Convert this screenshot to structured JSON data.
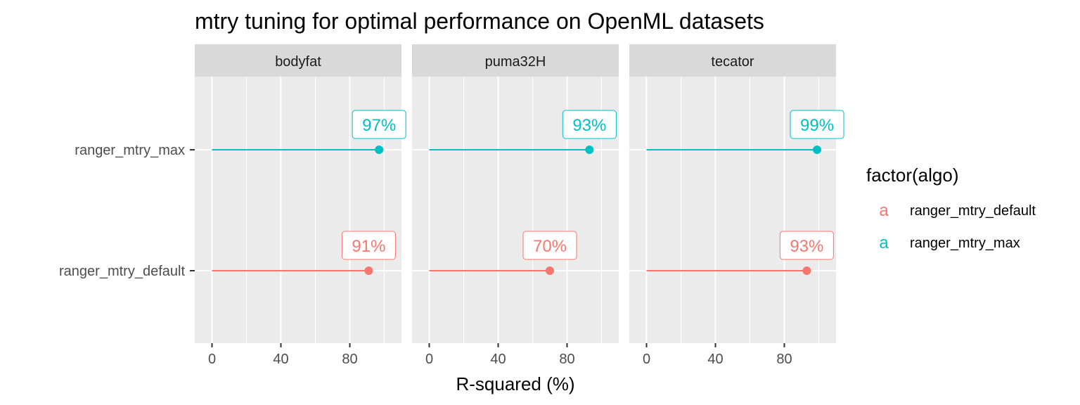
{
  "chart_data": {
    "type": "lollipop",
    "title": "mtry tuning for optimal performance on OpenML datasets",
    "xlabel": "R-squared (%)",
    "ylabel": "",
    "xlim": [
      -10,
      110
    ],
    "x_ticks": [
      0,
      40,
      80
    ],
    "categories": [
      "ranger_mtry_max",
      "ranger_mtry_default"
    ],
    "panels": [
      {
        "name": "bodyfat",
        "values": {
          "ranger_mtry_max": 97,
          "ranger_mtry_default": 91
        },
        "labels": {
          "ranger_mtry_max": "97%",
          "ranger_mtry_default": "91%"
        }
      },
      {
        "name": "puma32H",
        "values": {
          "ranger_mtry_max": 93,
          "ranger_mtry_default": 70
        },
        "labels": {
          "ranger_mtry_max": "93%",
          "ranger_mtry_default": "70%"
        }
      },
      {
        "name": "tecator",
        "values": {
          "ranger_mtry_max": 99,
          "ranger_mtry_default": 93
        },
        "labels": {
          "ranger_mtry_max": "99%",
          "ranger_mtry_default": "93%"
        }
      }
    ],
    "legend": {
      "title": "factor(algo)",
      "key_glyph": "a",
      "placement": "right",
      "items": [
        {
          "name": "ranger_mtry_default",
          "color": "#F8766D"
        },
        {
          "name": "ranger_mtry_max",
          "color": "#00BFC4"
        }
      ]
    },
    "grid": true,
    "panel_background": "#EBEBEB",
    "strip_background": "#D9D9D9"
  }
}
